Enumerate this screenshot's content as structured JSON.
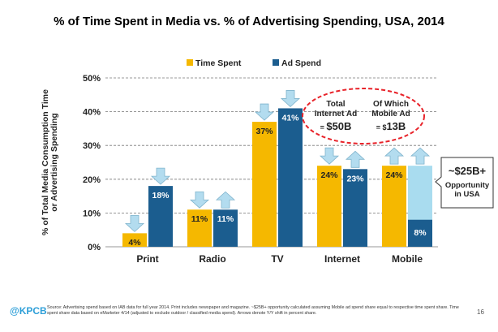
{
  "page": {
    "brand": "@KPCB",
    "source": "Source: Advertising spend based on IAB data for full year 2014. Print includes newspaper and magazine. ~$25B+ opportunity calculated assuming Mobile ad spend share equal to respective time spent share. Time spent share data based on eMarketer 4/14 (adjusted to exclude outdoor / classified media spend). Arrows denote Y/Y shift in percent share.",
    "page_number": "16"
  },
  "chart_data": {
    "type": "bar",
    "title": "% of Time Spent in Media vs. % of Advertising Spending, USA, 2014",
    "ylabel": "% of Total Media Consumption Time or Advertising Spending",
    "ylabel_lines": [
      "% of Total Media Consumption Time",
      "or Advertising Spending"
    ],
    "ylim": [
      0,
      50
    ],
    "yticks": [
      {
        "value": 0,
        "label": "0%"
      },
      {
        "value": 10,
        "label": "10%"
      },
      {
        "value": 20,
        "label": "20%"
      },
      {
        "value": 30,
        "label": "30%"
      },
      {
        "value": 40,
        "label": "40%"
      },
      {
        "value": 50,
        "label": "50%"
      }
    ],
    "grid": true,
    "legend_position": "top",
    "categories": [
      "Print",
      "Radio",
      "TV",
      "Internet",
      "Mobile"
    ],
    "series": [
      {
        "name": "Time Spent",
        "color": "#f5b800",
        "values": [
          4,
          11,
          37,
          24,
          24
        ],
        "labels": [
          "4%",
          "11%",
          "37%",
          "24%",
          "24%"
        ],
        "arrows": [
          "down",
          "down",
          "down",
          "down",
          "up"
        ]
      },
      {
        "name": "Ad Spend",
        "color": "#1b5d8f",
        "values": [
          18,
          11,
          41,
          23,
          8
        ],
        "labels": [
          "18%",
          "11%",
          "41%",
          "23%",
          "8%"
        ],
        "arrows": [
          "down",
          "up",
          "down",
          "up",
          "up"
        ]
      }
    ],
    "opportunity": {
      "category": "Mobile",
      "value": 24,
      "color": "#a9dcef",
      "callout_value": "~$25B+",
      "callout_text": [
        "Opportunity",
        "in USA"
      ]
    },
    "internet_callout": {
      "col1_lines": [
        "Total",
        "Internet Ad"
      ],
      "col1_eq": "= ",
      "col1_value": "$50B",
      "col2_lines": [
        "Of Which",
        "Mobile Ad"
      ],
      "col2_eq": "= $",
      "col2_value": "13B"
    },
    "colors": {
      "arrow_fill": "#b3dcef",
      "arrow_stroke": "#7fb3cc",
      "gridline": "#777777",
      "callout_border": "#e8232a"
    }
  }
}
